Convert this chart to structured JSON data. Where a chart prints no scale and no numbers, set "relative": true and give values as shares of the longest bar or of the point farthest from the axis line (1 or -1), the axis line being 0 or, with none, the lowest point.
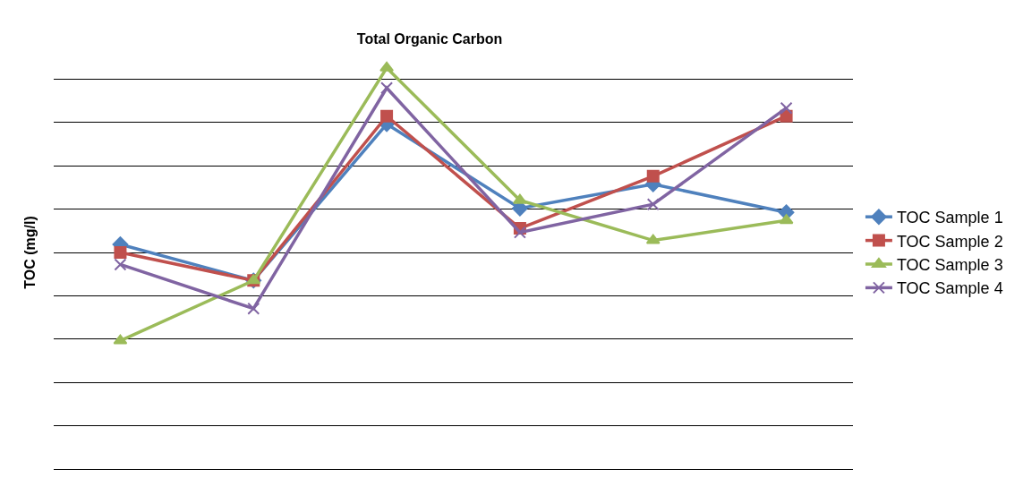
{
  "chart_data": {
    "type": "line",
    "title": "Total Organic Carbon",
    "ylabel": "TOC (mg/l)",
    "relative": true,
    "categories": [
      null,
      null,
      null,
      null,
      null,
      null
    ],
    "series": [
      {
        "name": "TOC Sample 1",
        "color": "#4f81bd",
        "marker": "diamond",
        "values": [
          0.56,
          0.47,
          0.86,
          0.65,
          0.71,
          0.64
        ]
      },
      {
        "name": "TOC Sample 2",
        "color": "#c0504d",
        "marker": "square",
        "values": [
          0.54,
          0.47,
          0.88,
          0.6,
          0.73,
          0.88
        ]
      },
      {
        "name": "TOC Sample 3",
        "color": "#9bbb59",
        "marker": "triangle",
        "values": [
          0.32,
          0.47,
          1,
          0.67,
          0.57,
          0.62
        ]
      },
      {
        "name": "TOC Sample 4",
        "color": "#8064a2",
        "marker": "cross",
        "values": [
          0.51,
          0.4,
          0.95,
          0.59,
          0.66,
          0.9
        ]
      }
    ],
    "grid": true,
    "legend": "right",
    "line_style": "solid"
  }
}
